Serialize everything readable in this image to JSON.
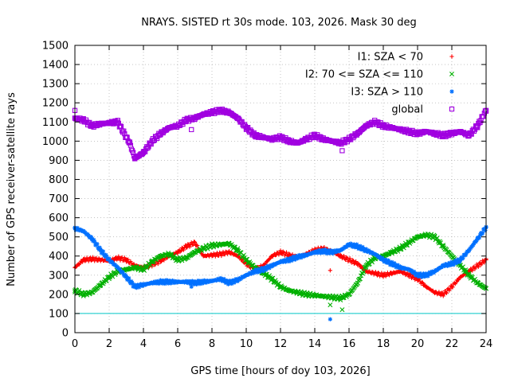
{
  "chart_data": {
    "type": "scatter",
    "title": "NRAYS. SISTED rt 30s mode. 103, 2026. Mask 30 deg",
    "xlabel": "GPS time [hours of doy 103, 2026]",
    "ylabel": "Number of GPS receiver-satellite rays",
    "xlim": [
      0,
      24
    ],
    "ylim": [
      0,
      1500
    ],
    "xticks": [
      "0",
      "2",
      "4",
      "6",
      "8",
      "10",
      "12",
      "14",
      "16",
      "18",
      "20",
      "22",
      "24"
    ],
    "yticks": [
      "0",
      "100",
      "200",
      "300",
      "400",
      "500",
      "600",
      "700",
      "800",
      "900",
      "1000",
      "1100",
      "1200",
      "1300",
      "1400",
      "1500"
    ],
    "grid": true,
    "legend_position": "top-right",
    "reference_line": {
      "y": 100,
      "color": "#00c8c8"
    },
    "series": [
      {
        "name": "I1: SZA < 70",
        "color": "#ff0000",
        "marker": "plus",
        "x": [
          0,
          0.5,
          1,
          1.5,
          2,
          2.5,
          3,
          3.5,
          4,
          4.5,
          5,
          5.5,
          6,
          6.5,
          7,
          7.5,
          8,
          8.5,
          9,
          9.5,
          10,
          10.5,
          11,
          11.5,
          12,
          12.5,
          13,
          13.5,
          14,
          14.5,
          15,
          15.5,
          16,
          16.5,
          17,
          17.5,
          18,
          18.5,
          19,
          19.5,
          20,
          20.5,
          21,
          21.5,
          22,
          22.5,
          23,
          23.5,
          24
        ],
        "values": [
          340,
          380,
          385,
          380,
          375,
          390,
          380,
          350,
          340,
          355,
          375,
          400,
          420,
          450,
          470,
          400,
          405,
          410,
          420,
          400,
          360,
          330,
          350,
          400,
          420,
          405,
          395,
          410,
          430,
          440,
          425,
          400,
          380,
          360,
          320,
          310,
          300,
          310,
          320,
          300,
          280,
          240,
          210,
          200,
          240,
          290,
          320,
          350,
          380
        ],
        "outliers": [
          [
            14.9,
            325
          ]
        ]
      },
      {
        "name": "I2: 70 <= SZA <= 110",
        "color": "#00b000",
        "marker": "cross",
        "x": [
          0,
          0.5,
          1,
          1.5,
          2,
          2.5,
          3,
          3.5,
          4,
          4.5,
          5,
          5.5,
          6,
          6.5,
          7,
          7.5,
          8,
          8.5,
          9,
          9.5,
          10,
          10.5,
          11,
          11.5,
          12,
          12.5,
          13,
          13.5,
          14,
          14.5,
          15,
          15.5,
          16,
          16.5,
          17,
          17.5,
          18,
          18.5,
          19,
          19.5,
          20,
          20.5,
          21,
          21.5,
          22,
          22.5,
          23,
          23.5,
          24
        ],
        "values": [
          220,
          200,
          210,
          250,
          290,
          320,
          330,
          340,
          330,
          370,
          400,
          410,
          380,
          390,
          420,
          440,
          455,
          460,
          465,
          430,
          380,
          340,
          310,
          280,
          240,
          220,
          210,
          200,
          195,
          190,
          185,
          180,
          200,
          260,
          350,
          390,
          400,
          420,
          440,
          470,
          500,
          510,
          500,
          450,
          400,
          350,
          300,
          260,
          230
        ],
        "outliers": [
          [
            14.9,
            145
          ],
          [
            15.6,
            120
          ]
        ]
      },
      {
        "name": "I3: SZA > 110",
        "color": "#0070ff",
        "marker": "star",
        "x": [
          0,
          0.5,
          1,
          1.5,
          2,
          2.5,
          3,
          3.5,
          4,
          4.5,
          5,
          5.5,
          6,
          6.5,
          7,
          7.5,
          8,
          8.5,
          9,
          9.5,
          10,
          10.5,
          11,
          11.5,
          12,
          12.5,
          13,
          13.5,
          14,
          14.5,
          15,
          15.5,
          16,
          16.5,
          17,
          17.5,
          18,
          18.5,
          19,
          19.5,
          20,
          20.5,
          21,
          21.5,
          22,
          22.5,
          23,
          23.5,
          24
        ],
        "values": [
          545,
          530,
          490,
          430,
          380,
          340,
          290,
          240,
          250,
          260,
          265,
          265,
          265,
          265,
          260,
          265,
          270,
          280,
          260,
          275,
          300,
          320,
          330,
          350,
          370,
          380,
          395,
          405,
          420,
          425,
          420,
          430,
          460,
          450,
          430,
          410,
          380,
          360,
          340,
          330,
          300,
          300,
          320,
          350,
          360,
          380,
          430,
          490,
          550
        ],
        "outliers": [
          [
            14.9,
            70
          ],
          [
            6.8,
            240
          ]
        ]
      },
      {
        "name": "global",
        "color": "#a000e0",
        "marker": "square",
        "x": [
          0,
          0.5,
          1,
          1.5,
          2,
          2.5,
          3,
          3.2,
          3.5,
          4,
          4.5,
          5,
          5.5,
          6,
          6.5,
          7,
          7.5,
          8,
          8.5,
          9,
          9.5,
          10,
          10.5,
          11,
          11.5,
          12,
          12.5,
          13,
          13.5,
          14,
          14.5,
          15,
          15.5,
          16,
          16.5,
          17,
          17.5,
          18,
          18.5,
          19,
          19.5,
          20,
          20.5,
          21,
          21.5,
          22,
          22.5,
          23,
          23.5,
          24
        ],
        "values": [
          1120,
          1110,
          1080,
          1090,
          1095,
          1100,
          1020,
          990,
          910,
          940,
          1000,
          1040,
          1070,
          1080,
          1110,
          1120,
          1140,
          1150,
          1160,
          1150,
          1120,
          1070,
          1030,
          1020,
          1010,
          1020,
          1000,
          990,
          1010,
          1030,
          1010,
          1000,
          990,
          1010,
          1040,
          1080,
          1100,
          1080,
          1070,
          1060,
          1050,
          1040,
          1050,
          1040,
          1030,
          1040,
          1050,
          1030,
          1080,
          1160
        ],
        "outliers": [
          [
            0,
            1160
          ],
          [
            6.8,
            1060
          ],
          [
            15.6,
            950
          ]
        ]
      }
    ]
  }
}
